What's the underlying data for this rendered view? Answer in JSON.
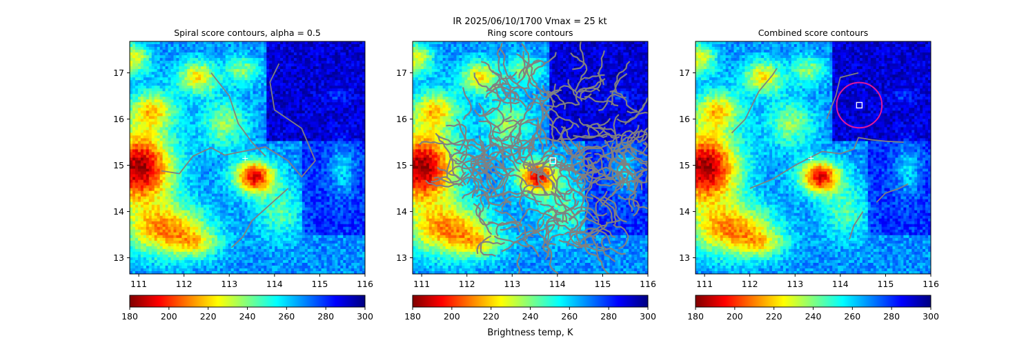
{
  "suptitle": "IR  2025/06/10/1700    Vmax = 25 kt",
  "colormap": {
    "name": "jet_r",
    "min": 180,
    "max": 300,
    "ticks": [
      180,
      200,
      220,
      240,
      260,
      280,
      300
    ],
    "label": "Brightness temp, K",
    "stops": [
      "#800000",
      "#ff0000",
      "#ff8000",
      "#ffff00",
      "#80ff80",
      "#00ffff",
      "#0080ff",
      "#0000ff",
      "#000080"
    ]
  },
  "chart_data": [
    {
      "type": "heatmap",
      "title": "Spiral score contours, alpha =  0.5",
      "xlim": [
        110.8,
        116.0
      ],
      "ylim": [
        12.65,
        17.68
      ],
      "xticks": [
        111,
        112,
        113,
        114,
        115,
        116
      ],
      "yticks": [
        13,
        14,
        15,
        16,
        17
      ],
      "contour_color": "#808080",
      "contours": [
        [
          [
            111.5,
            14.88
          ],
          [
            111.9,
            14.82
          ],
          [
            112.2,
            15.2
          ],
          [
            112.6,
            15.38
          ],
          [
            112.9,
            15.22
          ],
          [
            113.3,
            15.3
          ],
          [
            113.8,
            15.4
          ],
          [
            114.3,
            15.1
          ],
          [
            114.6,
            14.75
          ],
          [
            114.9,
            15.1
          ],
          [
            114.6,
            15.8
          ],
          [
            114.0,
            16.2
          ],
          [
            113.9,
            16.8
          ],
          [
            114.1,
            17.2
          ]
        ],
        [
          [
            112.6,
            17.0
          ],
          [
            113.0,
            16.5
          ],
          [
            113.2,
            15.9
          ],
          [
            113.5,
            15.5
          ],
          [
            113.8,
            15.2
          ]
        ],
        [
          [
            114.3,
            14.5
          ],
          [
            113.9,
            14.15
          ],
          [
            113.5,
            13.8
          ],
          [
            113.3,
            13.45
          ],
          [
            113.05,
            13.22
          ]
        ]
      ],
      "markers": [
        {
          "kind": "plus",
          "x": 113.35,
          "y": 15.15
        }
      ]
    },
    {
      "type": "heatmap",
      "title": "Ring score contours",
      "xlim": [
        110.8,
        116.0
      ],
      "ylim": [
        12.65,
        17.68
      ],
      "xticks": [
        111,
        112,
        113,
        114,
        115,
        116
      ],
      "yticks": [
        13,
        14,
        15,
        16,
        17
      ],
      "contour_color": "#808080",
      "ring_region": {
        "cx": 113.9,
        "cy": 15.1,
        "r": 2.2
      },
      "markers": [
        {
          "kind": "square",
          "x": 113.9,
          "y": 15.1
        }
      ]
    },
    {
      "type": "heatmap",
      "title": "Combined score contours",
      "xlim": [
        110.8,
        116.0
      ],
      "ylim": [
        12.65,
        17.68
      ],
      "xticks": [
        111,
        112,
        113,
        114,
        115,
        116
      ],
      "yticks": [
        13,
        14,
        15,
        16,
        17
      ],
      "contour_color": "#808080",
      "contours": [
        [
          [
            111.6,
            15.7
          ],
          [
            111.9,
            16.0
          ],
          [
            112.2,
            16.6
          ],
          [
            112.5,
            16.95
          ],
          [
            112.6,
            17.1
          ]
        ],
        [
          [
            112.0,
            14.5
          ],
          [
            112.5,
            14.7
          ],
          [
            113.0,
            15.0
          ],
          [
            113.6,
            15.3
          ],
          [
            114.0,
            15.25
          ],
          [
            114.3,
            15.35
          ],
          [
            114.4,
            15.6
          ],
          [
            114.7,
            15.55
          ],
          [
            115.0,
            15.52
          ],
          [
            115.4,
            15.5
          ]
        ],
        [
          [
            114.4,
            17.0
          ],
          [
            114.0,
            16.9
          ],
          [
            113.9,
            16.5
          ],
          [
            113.7,
            16.0
          ]
        ],
        [
          [
            114.8,
            14.2
          ],
          [
            115.0,
            14.4
          ],
          [
            115.3,
            14.5
          ],
          [
            115.5,
            14.6
          ]
        ],
        [
          [
            114.5,
            14.0
          ],
          [
            114.3,
            13.7
          ],
          [
            114.2,
            13.4
          ]
        ]
      ],
      "circle": {
        "cx": 114.42,
        "cy": 16.3,
        "r": 0.5,
        "color": "#e0189a"
      },
      "markers": [
        {
          "kind": "square",
          "x": 114.42,
          "y": 16.3
        },
        {
          "kind": "plus",
          "x": 113.35,
          "y": 15.15
        }
      ]
    }
  ]
}
